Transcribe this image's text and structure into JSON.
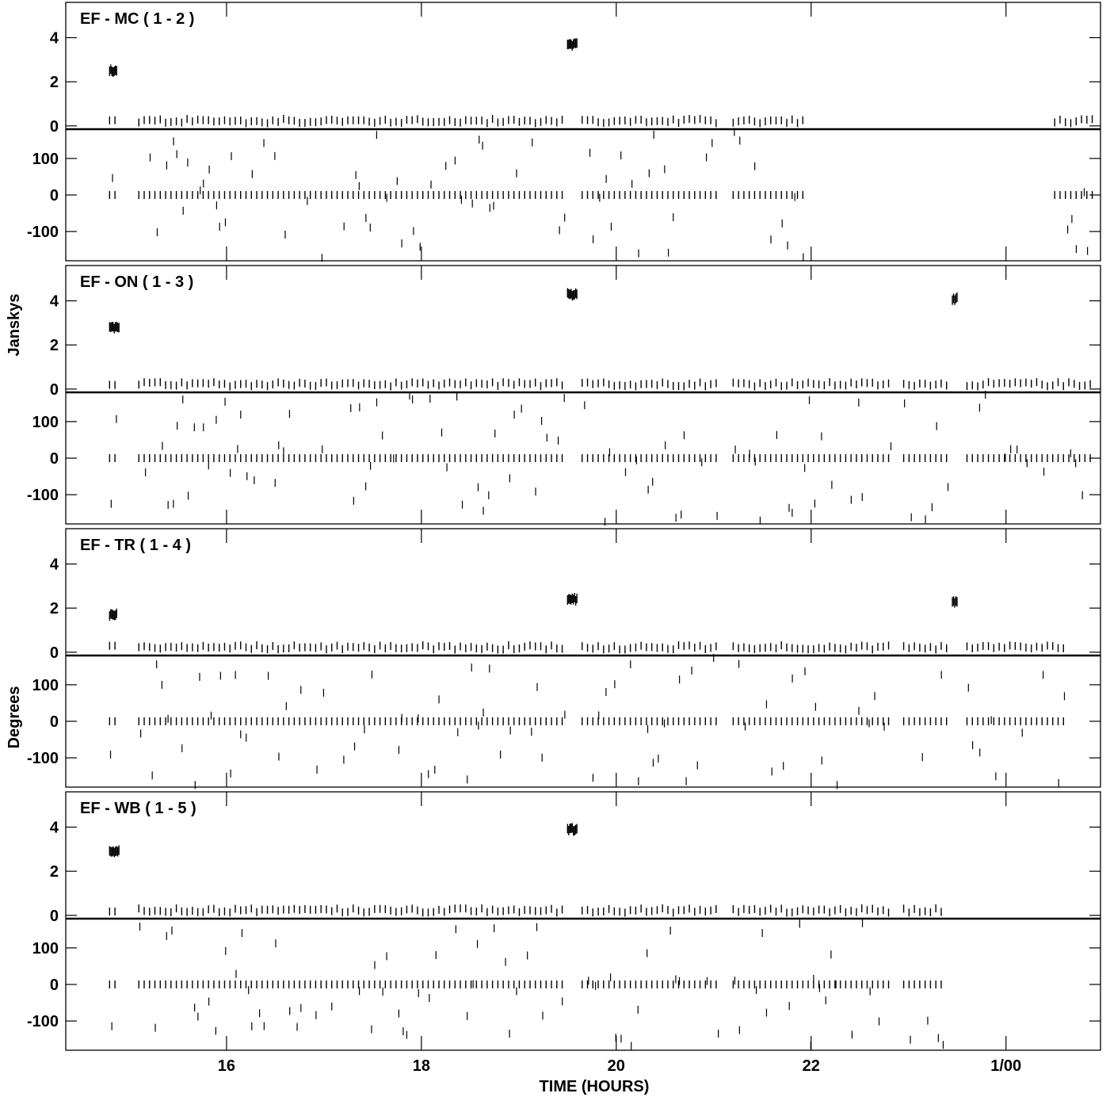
{
  "chart_data": {
    "type": "scatter",
    "xlabel": "TIME (HOURS)",
    "ylabel_amplitude": "Janskys",
    "ylabel_phase": "Degrees",
    "x_tick_labels": [
      "16",
      "18",
      "20",
      "22",
      "1/00"
    ],
    "x_tick_values": [
      16,
      18,
      20,
      22,
      24
    ],
    "xlim": [
      14.35,
      24.97
    ],
    "amplitude_axis": {
      "ylim": [
        -0.15,
        5.6
      ],
      "ticks": [
        0,
        2,
        4
      ],
      "tick_labels": [
        "0",
        "2",
        "4"
      ]
    },
    "phase_axis": {
      "ylim": [
        -180,
        180
      ],
      "ticks": [
        -100,
        0,
        100
      ],
      "tick_labels": [
        "-100",
        "0",
        "100"
      ]
    },
    "grid": false,
    "marker": "vertical-dash",
    "color": "#000000",
    "panels": [
      {
        "title": "EF - MC ( 1 - 2 )",
        "segments": [
          [
            14.8,
            14.9
          ],
          [
            15.1,
            19.45
          ],
          [
            19.65,
            21.05
          ],
          [
            21.2,
            21.95
          ],
          [
            24.5,
            24.9
          ]
        ],
        "spikes": [
          {
            "x": [
              14.8,
              14.88
            ],
            "amp": 2.5
          },
          {
            "x": [
              19.5,
              19.6
            ],
            "amp": 3.7
          }
        ]
      },
      {
        "title": "EF - ON ( 1 - 3 )",
        "segments": [
          [
            14.8,
            14.9
          ],
          [
            15.1,
            19.45
          ],
          [
            19.65,
            21.05
          ],
          [
            21.2,
            22.8
          ],
          [
            22.95,
            23.4
          ],
          [
            23.6,
            24.9
          ]
        ],
        "spikes": [
          {
            "x": [
              14.8,
              14.9
            ],
            "amp": 2.8
          },
          {
            "x": [
              19.5,
              19.6
            ],
            "amp": 4.3
          },
          {
            "x": [
              23.45,
              23.5
            ],
            "amp": 4.1
          }
        ]
      },
      {
        "title": "EF - TR ( 1 - 4 )",
        "segments": [
          [
            14.8,
            14.9
          ],
          [
            15.1,
            19.45
          ],
          [
            19.65,
            21.05
          ],
          [
            21.2,
            22.8
          ],
          [
            22.95,
            23.4
          ],
          [
            23.6,
            24.6
          ]
        ],
        "spikes": [
          {
            "x": [
              14.8,
              14.88
            ],
            "amp": 1.7
          },
          {
            "x": [
              19.5,
              19.6
            ],
            "amp": 2.4
          },
          {
            "x": [
              23.45,
              23.5
            ],
            "amp": 2.3
          }
        ]
      },
      {
        "title": "EF - WB ( 1 - 5 )",
        "segments": [
          [
            14.8,
            14.9
          ],
          [
            15.1,
            19.45
          ],
          [
            19.65,
            21.05
          ],
          [
            21.2,
            22.8
          ],
          [
            22.95,
            23.35
          ]
        ],
        "spikes": [
          {
            "x": [
              14.8,
              14.9
            ],
            "amp": 2.9
          },
          {
            "x": [
              19.5,
              19.6
            ],
            "amp": 3.9
          }
        ]
      }
    ]
  }
}
